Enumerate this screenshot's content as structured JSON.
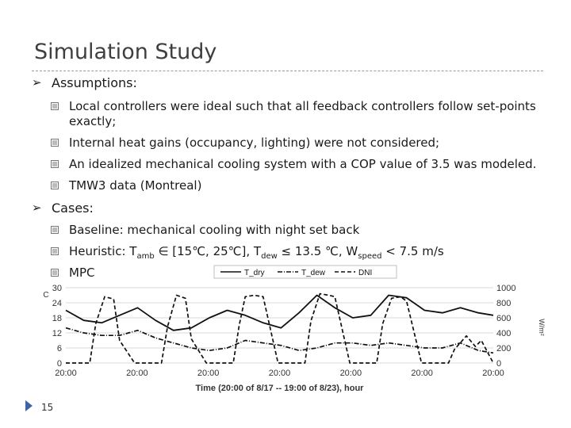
{
  "slide": {
    "title": "Simulation Study",
    "number": "15"
  },
  "assumptions": {
    "heading": "Assumptions:",
    "items": [
      "Local controllers were ideal such that all feedback controllers follow set-points",
      "exactly;",
      "Internal heat gains (occupancy, lighting) were not considered;",
      "An idealized mechanical cooling system with a COP value of 3.5 was modeled.",
      "TMW3 data (Montreal)"
    ]
  },
  "cases": {
    "heading": "Cases:",
    "baseline": "Baseline: mechanical cooling with night set back",
    "heuristic": {
      "prefix": "Heuristic: T",
      "sub_amb": "amb",
      "mid1": " ∈ [15℃, 25℃], T",
      "sub_dew": "dew",
      "mid2": " ≤ 13.5 ℃, W",
      "sub_speed": "speed",
      "suffix": " < 7.5 m/s"
    },
    "mpc": "MPC"
  },
  "chart_data": {
    "type": "line",
    "xlabel": "Time (20:00 of 8/17 -- 19:00 of 8/23), hour",
    "ylabel_left": "C",
    "ylabel_right": "W/m²",
    "x_tick_labels": [
      "20:00",
      "20:00",
      "20:00",
      "20:00",
      "20:00",
      "20:00",
      "20:00"
    ],
    "y_left": {
      "ticks": [
        "0",
        "6",
        "12",
        "18",
        "24",
        "30"
      ],
      "ylim": [
        0,
        30
      ]
    },
    "y_right": {
      "ticks": [
        "0",
        "200",
        "400",
        "600",
        "800",
        "1000"
      ],
      "ylim": [
        0,
        1000
      ]
    },
    "xlim": [
      0,
      143
    ],
    "grid": true,
    "legend_position": "top-center",
    "series": [
      {
        "name": "T_dry",
        "axis": "left",
        "style": "solid",
        "x": [
          0,
          6,
          12,
          18,
          24,
          30,
          36,
          42,
          48,
          54,
          60,
          66,
          72,
          78,
          84,
          90,
          96,
          102,
          108,
          114,
          120,
          126,
          132,
          138,
          143
        ],
        "values": [
          21,
          17,
          16,
          19,
          22,
          17,
          13,
          14,
          18,
          21,
          19,
          16,
          14,
          20,
          27,
          22,
          18,
          19,
          27,
          26,
          21,
          20,
          22,
          20,
          19
        ]
      },
      {
        "name": "T_dew",
        "axis": "left",
        "style": "dash-dot",
        "x": [
          0,
          6,
          12,
          18,
          24,
          30,
          36,
          42,
          48,
          54,
          60,
          66,
          72,
          78,
          84,
          90,
          96,
          102,
          108,
          114,
          120,
          126,
          132,
          138,
          143
        ],
        "values": [
          14,
          12,
          11,
          11,
          13,
          10,
          8,
          6,
          5,
          6,
          9,
          8,
          7,
          5,
          6,
          8,
          8,
          7,
          8,
          7,
          6,
          6,
          8,
          5,
          4
        ]
      },
      {
        "name": "DNI",
        "axis": "right",
        "style": "dashed",
        "x": [
          0,
          8,
          10,
          13,
          16,
          18,
          23,
          32,
          34,
          37,
          40,
          42,
          47,
          56,
          58,
          60,
          63,
          66,
          71,
          80,
          82,
          85,
          88,
          90,
          95,
          104,
          106,
          109,
          112,
          114,
          119,
          128,
          130,
          134,
          137,
          139,
          143
        ],
        "values": [
          0,
          0,
          520,
          880,
          850,
          300,
          0,
          0,
          480,
          900,
          860,
          320,
          0,
          0,
          500,
          880,
          900,
          880,
          0,
          0,
          560,
          920,
          900,
          880,
          0,
          0,
          520,
          860,
          880,
          820,
          0,
          0,
          180,
          360,
          220,
          300,
          0
        ]
      }
    ]
  }
}
